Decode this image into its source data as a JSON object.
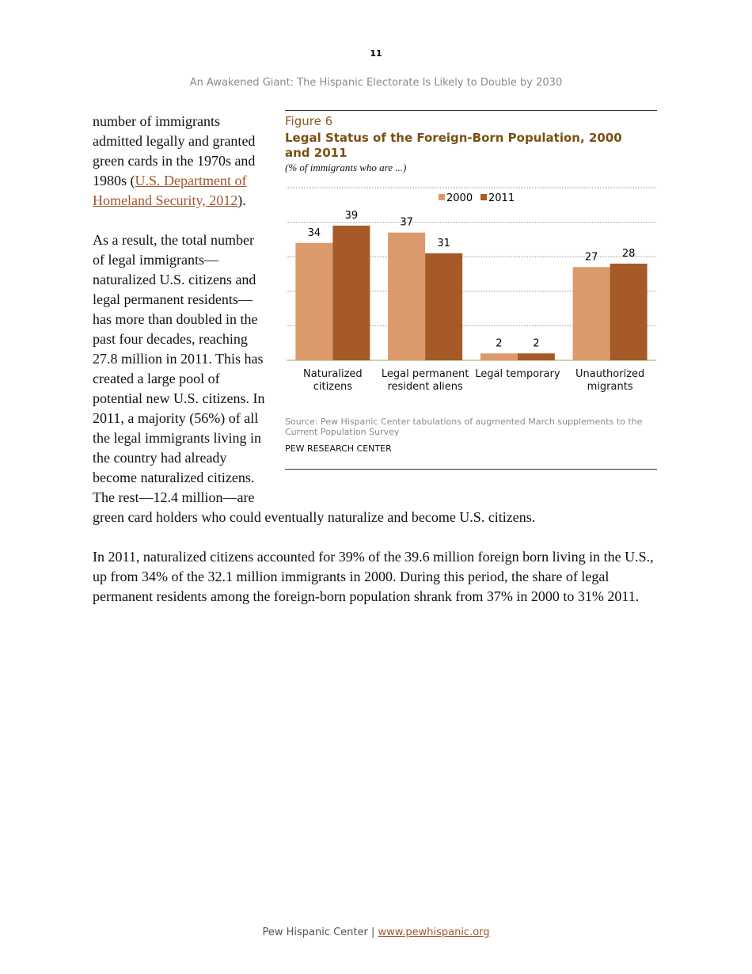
{
  "page_number": "11",
  "header": "An Awakened Giant: The Hispanic Electorate Is Likely to Double by 2030",
  "body": {
    "p1_before": "number of immigrants admitted legally and granted green cards in the 1970s and 1980s (",
    "p1_link": "U.S. Department of Homeland Security, 2012",
    "p1_after": ").",
    "p2": "As a result, the total number of legal immigrants—naturalized U.S. citizens and legal permanent residents—has more than doubled in the past four decades, reaching 27.8 million in 2011. This has created a large pool of potential new U.S. citizens. In 2011, a majority (56%) of all the legal immigrants living in the country had already become naturalized citizens. The rest—12.4 million—are green card holders who could eventually naturalize and become U.S. citizens.",
    "p3": "In 2011, naturalized citizens accounted for 39% of the 39.6 million foreign born living in the U.S., up from 34% of the 32.1 million immigrants in 2000. During this period, the share of legal permanent residents among the foreign-born population shrank from 37% in 2000 to 31% 2011."
  },
  "chart_data": {
    "type": "bar",
    "figure_label": "Figure 6",
    "title": "Legal Status of the Foreign-Born Population, 2000 and 2011",
    "subtitle": "(% of immigrants who are ...)",
    "categories": [
      "Naturalized citizens",
      "Legal permanent resident aliens",
      "Legal temporary",
      "Unauthorized migrants"
    ],
    "series": [
      {
        "name": "2000",
        "color": "#dc9a6c",
        "values": [
          34,
          37,
          2,
          27
        ]
      },
      {
        "name": "2011",
        "color": "#a55a28",
        "values": [
          39,
          31,
          2,
          28
        ]
      }
    ],
    "ylim": [
      0,
      50
    ],
    "yticks": [
      0,
      10,
      20,
      30,
      40,
      50
    ],
    "grid": true,
    "legend": "top",
    "source": "Source: Pew Hispanic Center tabulations of augmented March supplements to the Current Population Survey",
    "credit": "PEW RESEARCH CENTER"
  },
  "footer": {
    "text": "Pew Hispanic Center |",
    "link": "www.pewhispanic.org"
  }
}
